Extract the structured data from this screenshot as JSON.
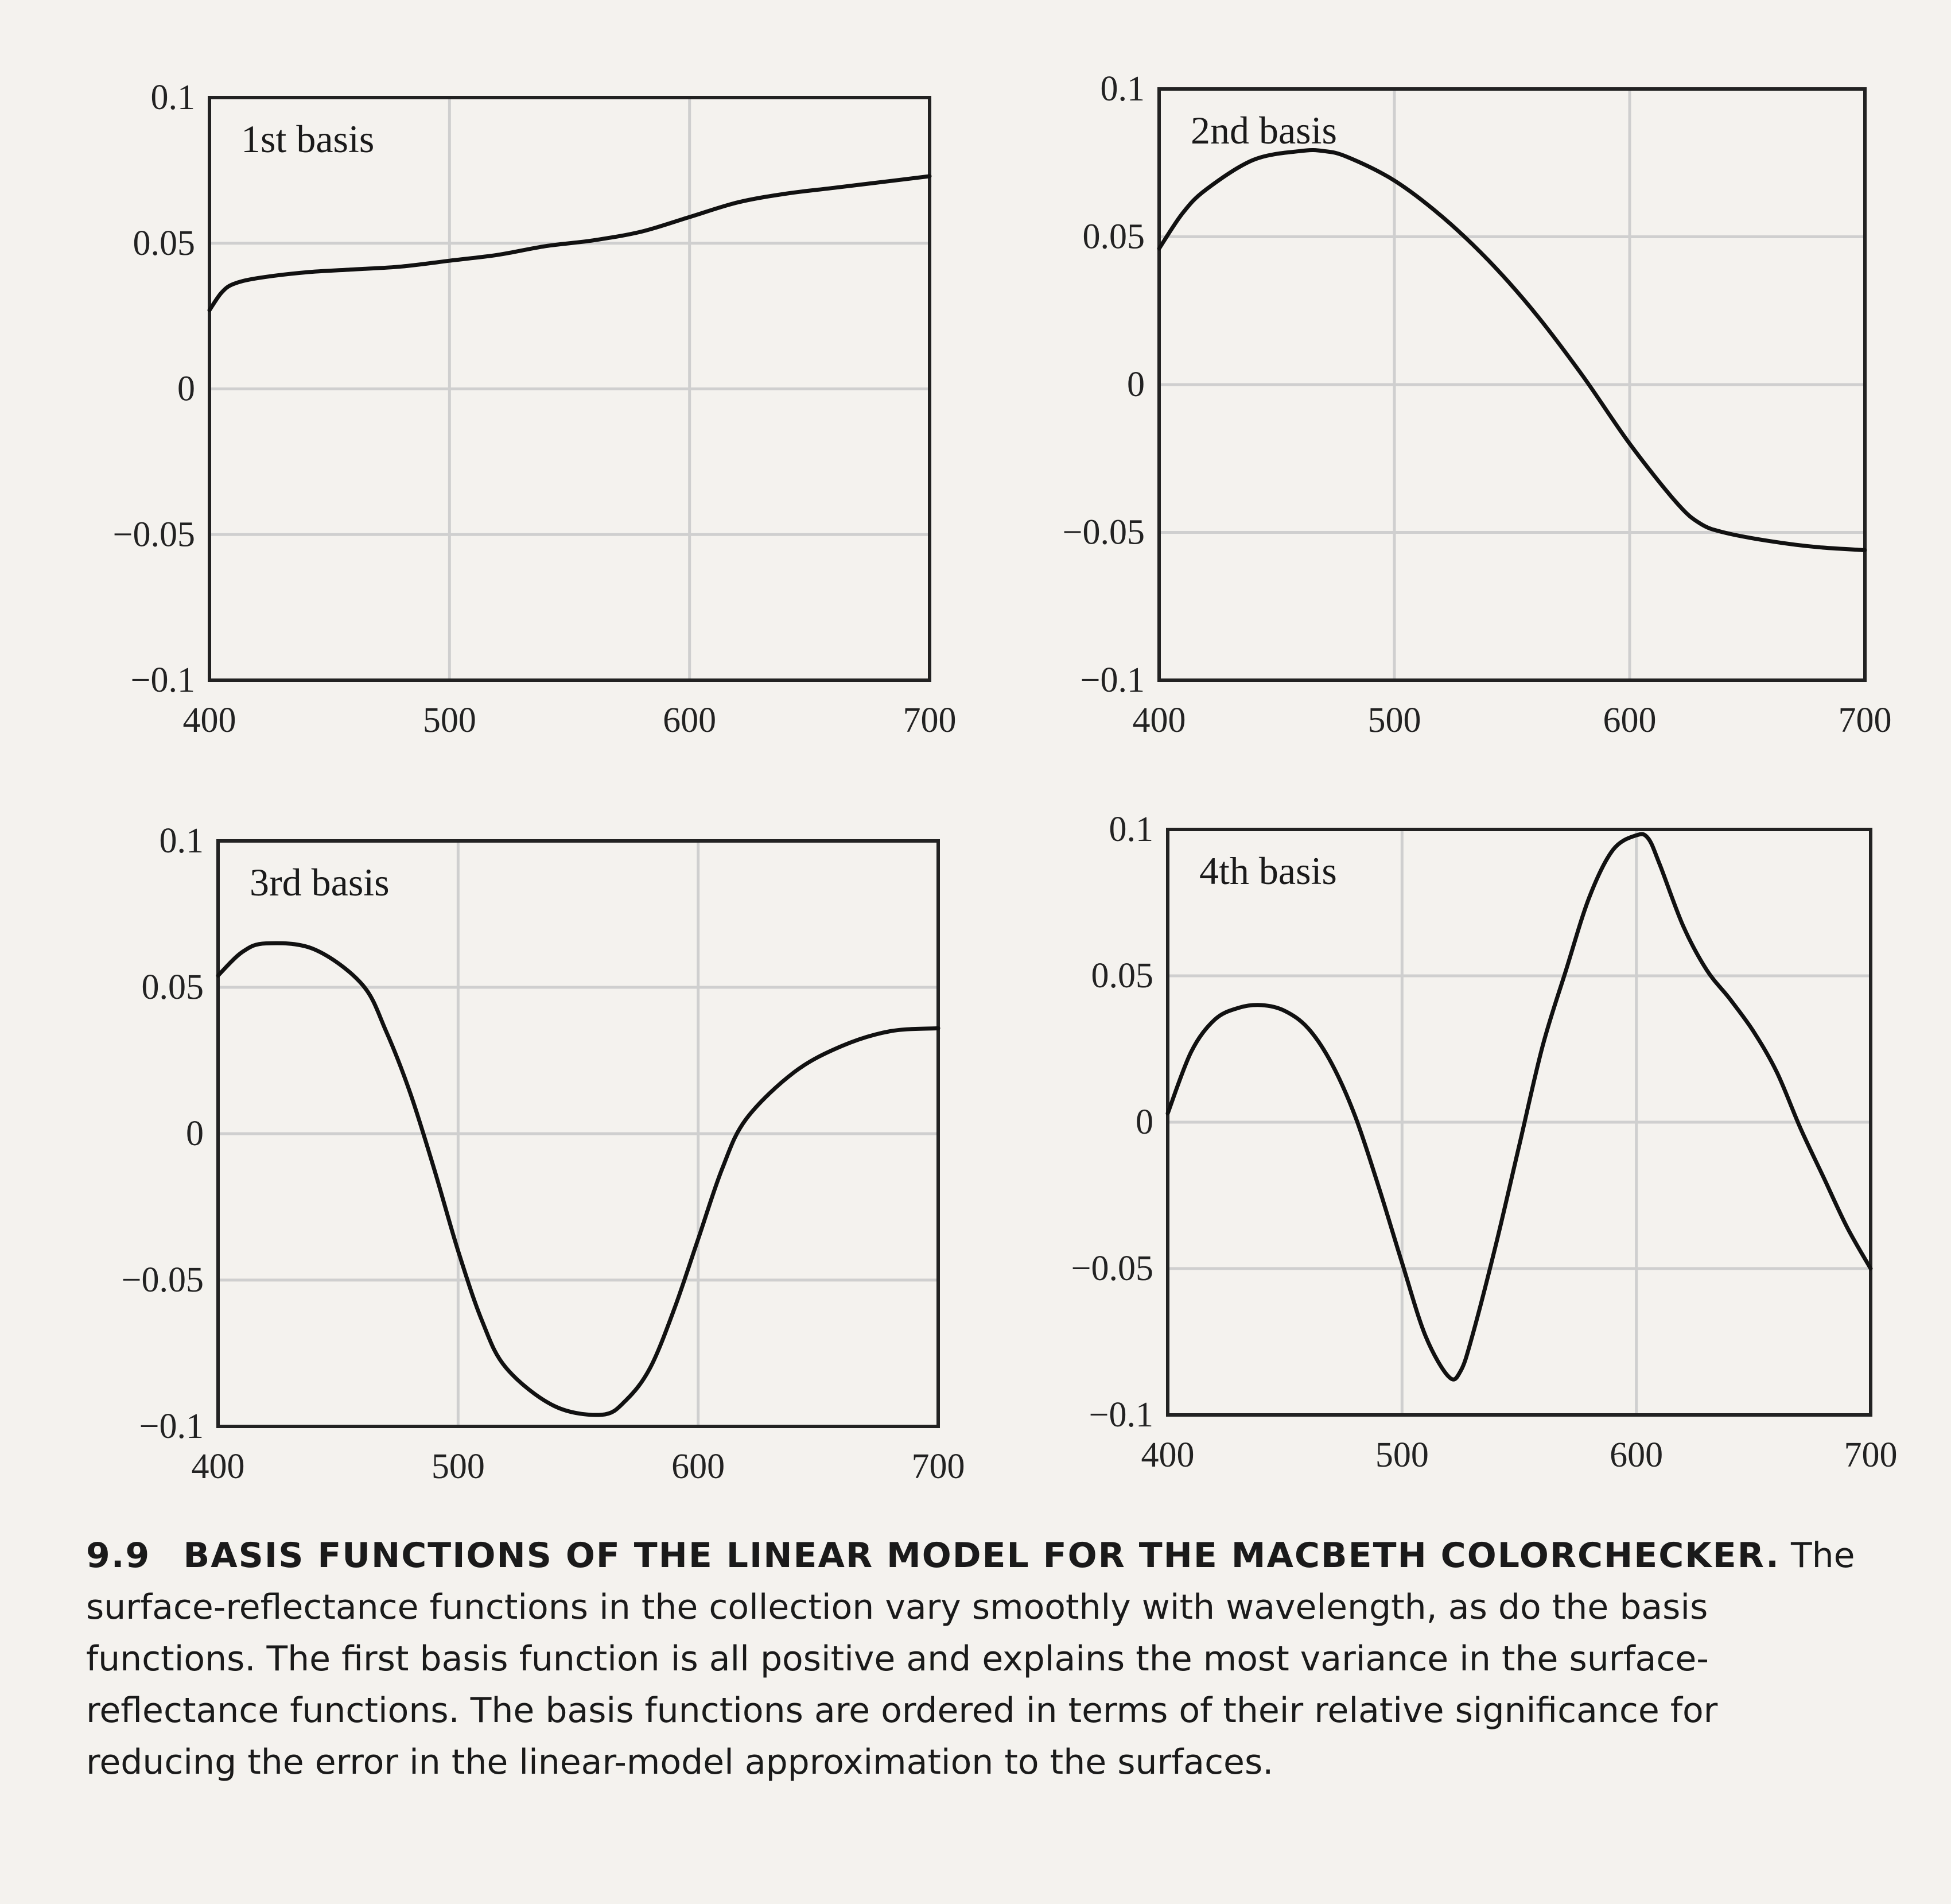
{
  "chart_data": [
    {
      "type": "line",
      "title": "1st basis",
      "xlim": [
        400,
        700
      ],
      "ylim": [
        -0.1,
        0.1
      ],
      "xticks": [
        "400",
        "500",
        "600",
        "700"
      ],
      "yticks": [
        "0.1",
        "0.05",
        "0",
        "−0.05",
        "−0.1"
      ],
      "grid": true,
      "series": [
        {
          "x": [
            400,
            405,
            410,
            420,
            440,
            460,
            480,
            500,
            520,
            540,
            560,
            580,
            600,
            620,
            640,
            660,
            680,
            700
          ],
          "values": [
            0.027,
            0.033,
            0.036,
            0.038,
            0.04,
            0.041,
            0.042,
            0.044,
            0.046,
            0.049,
            0.051,
            0.054,
            0.059,
            0.064,
            0.067,
            0.069,
            0.071,
            0.073
          ]
        }
      ]
    },
    {
      "type": "line",
      "title": "2nd basis",
      "xlim": [
        400,
        700
      ],
      "ylim": [
        -0.1,
        0.1
      ],
      "xticks": [
        "400",
        "500",
        "600",
        "700"
      ],
      "yticks": [
        "0.1",
        "0.05",
        "0",
        "−0.05",
        "−0.1"
      ],
      "grid": true,
      "series": [
        {
          "x": [
            400,
            410,
            420,
            440,
            460,
            470,
            480,
            500,
            520,
            540,
            560,
            580,
            600,
            620,
            630,
            640,
            660,
            680,
            700
          ],
          "values": [
            0.046,
            0.058,
            0.066,
            0.076,
            0.079,
            0.079,
            0.077,
            0.069,
            0.057,
            0.042,
            0.024,
            0.003,
            -0.02,
            -0.04,
            -0.047,
            -0.05,
            -0.053,
            -0.055,
            -0.056
          ]
        }
      ]
    },
    {
      "type": "line",
      "title": "3rd basis",
      "xlim": [
        400,
        700
      ],
      "ylim": [
        -0.1,
        0.1
      ],
      "xticks": [
        "400",
        "500",
        "600",
        "700"
      ],
      "yticks": [
        "0.1",
        "0.05",
        "0",
        "−0.05",
        "−0.1"
      ],
      "grid": true,
      "series": [
        {
          "x": [
            400,
            410,
            420,
            440,
            460,
            470,
            480,
            490,
            500,
            510,
            520,
            540,
            560,
            570,
            580,
            590,
            600,
            610,
            620,
            640,
            660,
            680,
            700
          ],
          "values": [
            0.054,
            0.062,
            0.065,
            0.063,
            0.051,
            0.035,
            0.014,
            -0.012,
            -0.04,
            -0.064,
            -0.08,
            -0.093,
            -0.096,
            -0.091,
            -0.08,
            -0.06,
            -0.036,
            -0.012,
            0.005,
            0.021,
            0.03,
            0.035,
            0.036
          ]
        }
      ]
    },
    {
      "type": "line",
      "title": "4th basis",
      "xlim": [
        400,
        700
      ],
      "ylim": [
        -0.1,
        0.1
      ],
      "xticks": [
        "400",
        "500",
        "600",
        "700"
      ],
      "yticks": [
        "0.1",
        "0.05",
        "0",
        "−0.05",
        "−0.1"
      ],
      "grid": true,
      "series": [
        {
          "x": [
            400,
            410,
            420,
            430,
            440,
            450,
            460,
            470,
            480,
            490,
            500,
            510,
            520,
            525,
            530,
            540,
            550,
            560,
            570,
            580,
            590,
            600,
            605,
            610,
            620,
            630,
            640,
            650,
            660,
            670,
            680,
            690,
            700
          ],
          "values": [
            0.003,
            0.024,
            0.035,
            0.039,
            0.04,
            0.038,
            0.032,
            0.02,
            0.002,
            -0.022,
            -0.048,
            -0.073,
            -0.087,
            -0.085,
            -0.073,
            -0.042,
            -0.008,
            0.026,
            0.052,
            0.077,
            0.093,
            0.098,
            0.097,
            0.088,
            0.067,
            0.052,
            0.042,
            0.031,
            0.017,
            -0.002,
            -0.019,
            -0.036,
            -0.05
          ]
        }
      ]
    }
  ],
  "caption": {
    "number": "9.9",
    "title": "BASIS FUNCTIONS OF THE LINEAR MODEL FOR THE MACBETH COLORCHECKER.",
    "text": "The surface-reflectance functions in the collection vary smoothly with wavelength, as do the basis functions. The first basis function is all positive and explains the most variance in the surface-reflectance functions. The basis functions are ordered in terms of their relative significance for reducing the error in the linear-model approximation to the surfaces."
  }
}
